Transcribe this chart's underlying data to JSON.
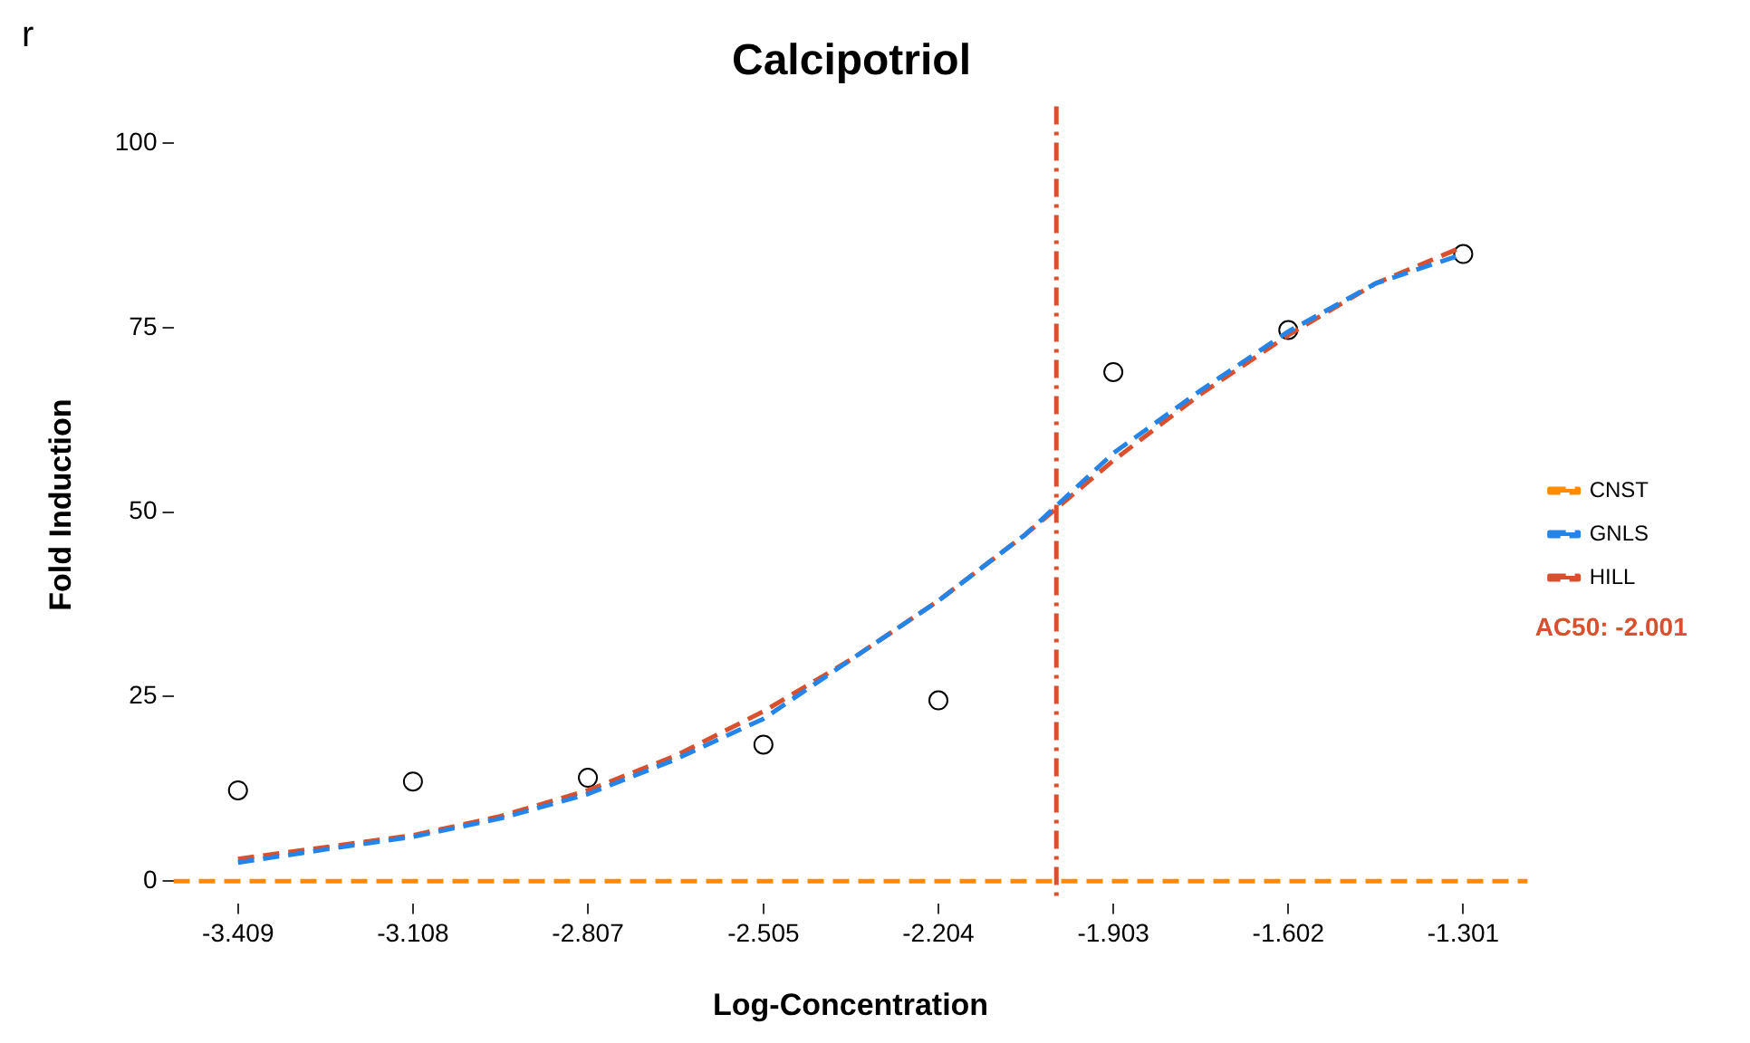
{
  "chart_data": {
    "type": "line",
    "title": "Calcipotriol",
    "xlabel": "Log-Concentration",
    "ylabel": "Fold Induction",
    "xlim": [
      -3.52,
      -1.19
    ],
    "ylim": [
      -3,
      105
    ],
    "xticks": [
      -3.409,
      -3.108,
      -2.807,
      -2.505,
      -2.204,
      -1.903,
      -1.602,
      -1.301
    ],
    "yticks": [
      0,
      25,
      50,
      75,
      100
    ],
    "grid": false,
    "legend": "right",
    "marker": "none",
    "annotations": [
      "r"
    ],
    "ref_lines": [
      {
        "axis": "x",
        "value": -2.001,
        "label": "AC50: -2.001",
        "color": "#d9502e",
        "line_style": "dashed"
      }
    ],
    "series": [
      {
        "name": "CNST",
        "type": "line",
        "color": "#ff8c00",
        "line_style": "dashed",
        "x": [
          -3.52,
          -1.19
        ],
        "values": [
          0,
          0
        ]
      },
      {
        "name": "GNLS",
        "type": "line",
        "color": "#2484e8",
        "line_style": "dashed",
        "x": [
          -3.409,
          -3.258,
          -3.108,
          -2.957,
          -2.807,
          -2.656,
          -2.505,
          -2.355,
          -2.204,
          -2.054,
          -1.903,
          -1.753,
          -1.602,
          -1.452,
          -1.301
        ],
        "values": [
          2.5,
          4.3,
          6,
          8.5,
          11.8,
          16.5,
          22,
          30,
          38,
          47,
          58,
          66.5,
          74.5,
          81,
          85
        ]
      },
      {
        "name": "HILL",
        "type": "line",
        "color": "#d9502e",
        "line_style": "dashed",
        "x": [
          -3.409,
          -3.258,
          -3.108,
          -2.957,
          -2.807,
          -2.656,
          -2.505,
          -2.355,
          -2.204,
          -2.054,
          -1.903,
          -1.753,
          -1.602,
          -1.452,
          -1.301
        ],
        "values": [
          3,
          4.6,
          6.2,
          8.8,
          12.3,
          17,
          23,
          30,
          38,
          47,
          57,
          66,
          74,
          81,
          86
        ]
      },
      {
        "type": "scatter",
        "color": "#000000",
        "marker": "circle",
        "x": [
          -3.409,
          -3.108,
          -2.807,
          -2.505,
          -2.204,
          -1.903,
          -1.602,
          -1.301
        ],
        "values": [
          12.3,
          13.5,
          14,
          18.5,
          24.5,
          69,
          74.7,
          85
        ]
      }
    ]
  }
}
